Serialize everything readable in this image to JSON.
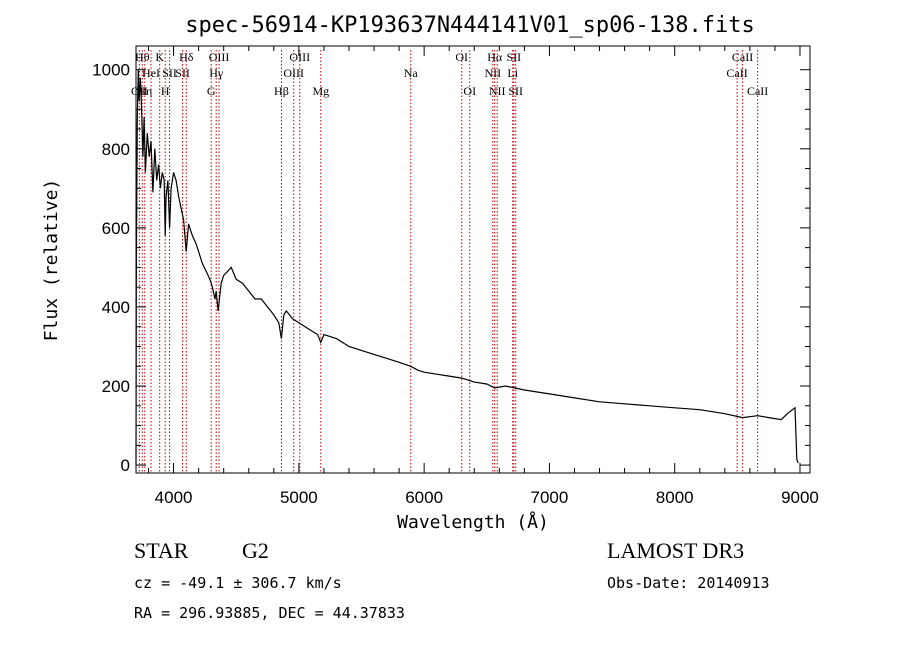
{
  "chart_data": {
    "type": "line",
    "title": "spec-56914-KP193637N444141V01_sp06-138.fits",
    "xlabel": "Wavelength (Å)",
    "ylabel": "Flux (relative)",
    "xlim": [
      3700,
      9080
    ],
    "ylim": [
      -20,
      1060
    ],
    "xticks": [
      4000,
      5000,
      6000,
      7000,
      8000,
      9000
    ],
    "xtick_labels": [
      "4000",
      "5000",
      "6000",
      "7000",
      "8000",
      "9000"
    ],
    "yticks": [
      0,
      200,
      400,
      600,
      800,
      1000
    ],
    "ytick_labels": [
      "0",
      "200",
      "400",
      "600",
      "800",
      "1000"
    ],
    "series": [
      {
        "name": "spectrum",
        "x": [
          3700,
          3702,
          3705,
          3710,
          3718,
          3725,
          3735,
          3745,
          3755,
          3765,
          3775,
          3790,
          3805,
          3820,
          3835,
          3850,
          3865,
          3880,
          3895,
          3910,
          3925,
          3933,
          3940,
          3955,
          3968,
          3980,
          4000,
          4020,
          4040,
          4060,
          4080,
          4101,
          4120,
          4150,
          4180,
          4200,
          4230,
          4260,
          4290,
          4310,
          4330,
          4340,
          4355,
          4380,
          4400,
          4430,
          4460,
          4500,
          4550,
          4600,
          4650,
          4700,
          4750,
          4800,
          4840,
          4861,
          4880,
          4900,
          4950,
          5000,
          5050,
          5100,
          5150,
          5175,
          5200,
          5300,
          5400,
          5500,
          5600,
          5700,
          5800,
          5893,
          5950,
          6000,
          6100,
          6200,
          6300,
          6400,
          6500,
          6563,
          6650,
          6800,
          7000,
          7200,
          7400,
          7600,
          7800,
          8000,
          8200,
          8400,
          8542,
          8662,
          8750,
          8850,
          8900,
          8940,
          8960,
          8970,
          8975,
          8985
        ],
        "y": [
          0,
          450,
          600,
          880,
          1000,
          920,
          980,
          900,
          780,
          880,
          740,
          840,
          780,
          820,
          690,
          800,
          720,
          760,
          700,
          740,
          720,
          580,
          680,
          720,
          600,
          700,
          740,
          720,
          680,
          650,
          620,
          540,
          610,
          580,
          560,
          540,
          510,
          490,
          470,
          450,
          420,
          440,
          390,
          460,
          480,
          490,
          500,
          470,
          460,
          440,
          420,
          420,
          400,
          380,
          360,
          320,
          380,
          390,
          370,
          360,
          350,
          340,
          330,
          310,
          330,
          320,
          300,
          290,
          280,
          270,
          260,
          250,
          240,
          235,
          230,
          225,
          220,
          210,
          205,
          195,
          200,
          190,
          180,
          170,
          160,
          155,
          150,
          145,
          140,
          130,
          120,
          125,
          120,
          115,
          130,
          140,
          145,
          60,
          15,
          5
        ]
      }
    ],
    "spectral_lines": [
      {
        "wavelength": 3727,
        "label": "OII",
        "row": 3
      },
      {
        "wavelength": 3750,
        "label": "Hθ",
        "row": 1
      },
      {
        "wavelength": 3770,
        "label": "Hη",
        "row": 3
      },
      {
        "wavelength": 3820,
        "label": "HeI",
        "row": 2
      },
      {
        "wavelength": 3889,
        "label": "K",
        "row": 1
      },
      {
        "wavelength": 3933,
        "label": "H",
        "row": 3
      },
      {
        "wavelength": 3968,
        "label": "SII",
        "row": 2
      },
      {
        "wavelength": 4101,
        "label": "Hδ",
        "row": 1
      },
      {
        "wavelength": 4072,
        "label": "SII",
        "row": 2
      },
      {
        "wavelength": 4300,
        "label": "G",
        "row": 3
      },
      {
        "wavelength": 4340,
        "label": "Hγ",
        "row": 2
      },
      {
        "wavelength": 4363,
        "label": "OIII",
        "row": 1
      },
      {
        "wavelength": 4861,
        "label": "Hβ",
        "row": 3
      },
      {
        "wavelength": 4959,
        "label": "OIII",
        "row": 2
      },
      {
        "wavelength": 5007,
        "label": "OIII",
        "row": 1
      },
      {
        "wavelength": 5175,
        "label": "Mg",
        "row": 3
      },
      {
        "wavelength": 5893,
        "label": "Na",
        "row": 2
      },
      {
        "wavelength": 6300,
        "label": "OI",
        "row": 1
      },
      {
        "wavelength": 6364,
        "label": "OI",
        "row": 3
      },
      {
        "wavelength": 6548,
        "label": "NII",
        "row": 2
      },
      {
        "wavelength": 6563,
        "label": "Hα",
        "row": 1
      },
      {
        "wavelength": 6583,
        "label": "NII",
        "row": 3
      },
      {
        "wavelength": 6707,
        "label": "Li",
        "row": 2
      },
      {
        "wavelength": 6716,
        "label": "SII",
        "row": 1
      },
      {
        "wavelength": 6731,
        "label": "SII",
        "row": 3
      },
      {
        "wavelength": 8498,
        "label": "CaII",
        "row": 2
      },
      {
        "wavelength": 8542,
        "label": "CaII",
        "row": 1
      },
      {
        "wavelength": 8662,
        "label": "CaII",
        "row": 3
      }
    ],
    "line_color": "#000000",
    "marker_color": "#c00000"
  },
  "info": {
    "object_class": "STAR",
    "subclass": "G2",
    "survey": "LAMOST DR3",
    "redshift": "cz = -49.1 ± 306.7 km/s",
    "obs_date": "Obs-Date: 20140913",
    "coords": "RA = 296.93885, DEC =  44.37833"
  }
}
